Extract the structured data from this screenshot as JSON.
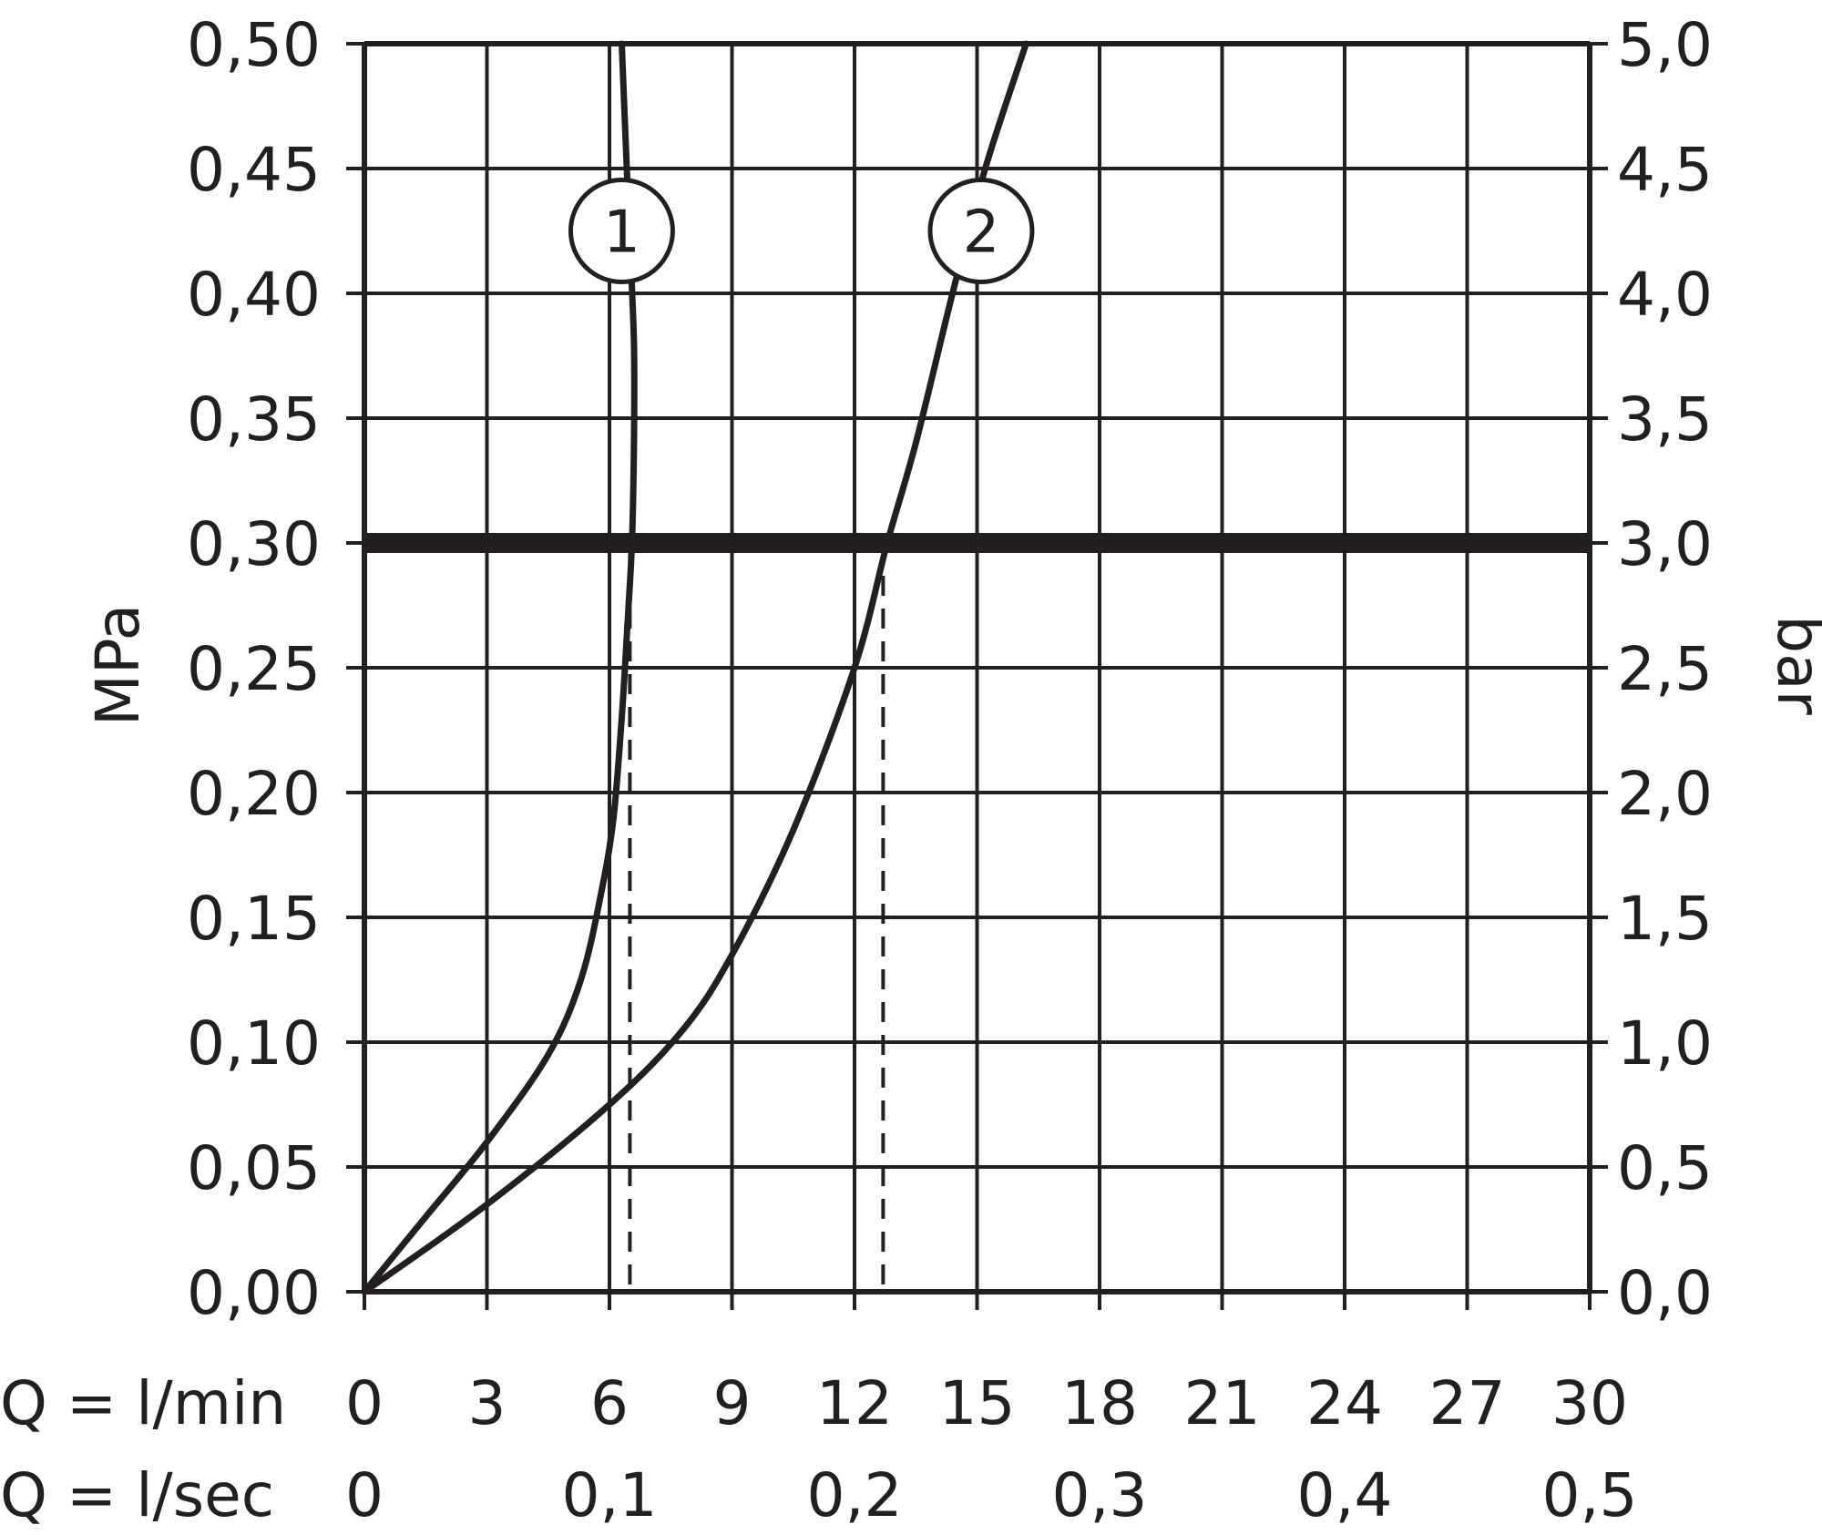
{
  "chart_data": {
    "type": "line",
    "xlabel": "Q = l/min",
    "x2label": "Q = l/sec",
    "ylabel": "MPa",
    "y2label": "bar",
    "xlim": [
      0,
      30
    ],
    "ylim": [
      0,
      0.5
    ],
    "x_ticks": [
      "0",
      "3",
      "6",
      "9",
      "12",
      "15",
      "18",
      "21",
      "24",
      "27",
      "30"
    ],
    "x2_ticks": [
      {
        "value": 0,
        "label": "0"
      },
      {
        "value": 6,
        "label": "0,1"
      },
      {
        "value": 12,
        "label": "0,2"
      },
      {
        "value": 18,
        "label": "0,3"
      },
      {
        "value": 24,
        "label": "0,4"
      },
      {
        "value": 30,
        "label": "0,5"
      }
    ],
    "y_ticks": [
      {
        "value": 0.0,
        "label": "0,00"
      },
      {
        "value": 0.05,
        "label": "0,05"
      },
      {
        "value": 0.1,
        "label": "0,10"
      },
      {
        "value": 0.15,
        "label": "0,15"
      },
      {
        "value": 0.2,
        "label": "0,20"
      },
      {
        "value": 0.25,
        "label": "0,25"
      },
      {
        "value": 0.3,
        "label": "0,30"
      },
      {
        "value": 0.35,
        "label": "0,35"
      },
      {
        "value": 0.4,
        "label": "0,40"
      },
      {
        "value": 0.45,
        "label": "0,45"
      },
      {
        "value": 0.5,
        "label": "0,50"
      }
    ],
    "y2_ticks": [
      "0,0",
      "0,5",
      "1,0",
      "1,5",
      "2,0",
      "2,5",
      "3,0",
      "3,5",
      "4,0",
      "4,5",
      "5,0"
    ],
    "grid": true,
    "reference_line": {
      "y": 0.3
    },
    "series": [
      {
        "name": "1",
        "x": [
          0,
          1.5,
          3,
          4.5,
          5.3,
          5.8,
          6.1,
          6.3,
          6.45,
          6.55,
          6.6,
          6.6,
          6.5,
          6.4,
          6.3
        ],
        "y": [
          0,
          0.03,
          0.06,
          0.095,
          0.125,
          0.16,
          0.19,
          0.23,
          0.27,
          0.3,
          0.34,
          0.38,
          0.42,
          0.46,
          0.5
        ],
        "drop_x": 6.5
      },
      {
        "name": "2",
        "x": [
          0,
          3,
          6,
          7.8,
          9,
          10.5,
          12,
          12.8,
          13.5,
          14.4,
          15.2,
          16.2
        ],
        "y": [
          0,
          0.035,
          0.075,
          0.105,
          0.135,
          0.185,
          0.25,
          0.3,
          0.34,
          0.4,
          0.45,
          0.5
        ],
        "drop_x": 12.7
      }
    ]
  }
}
